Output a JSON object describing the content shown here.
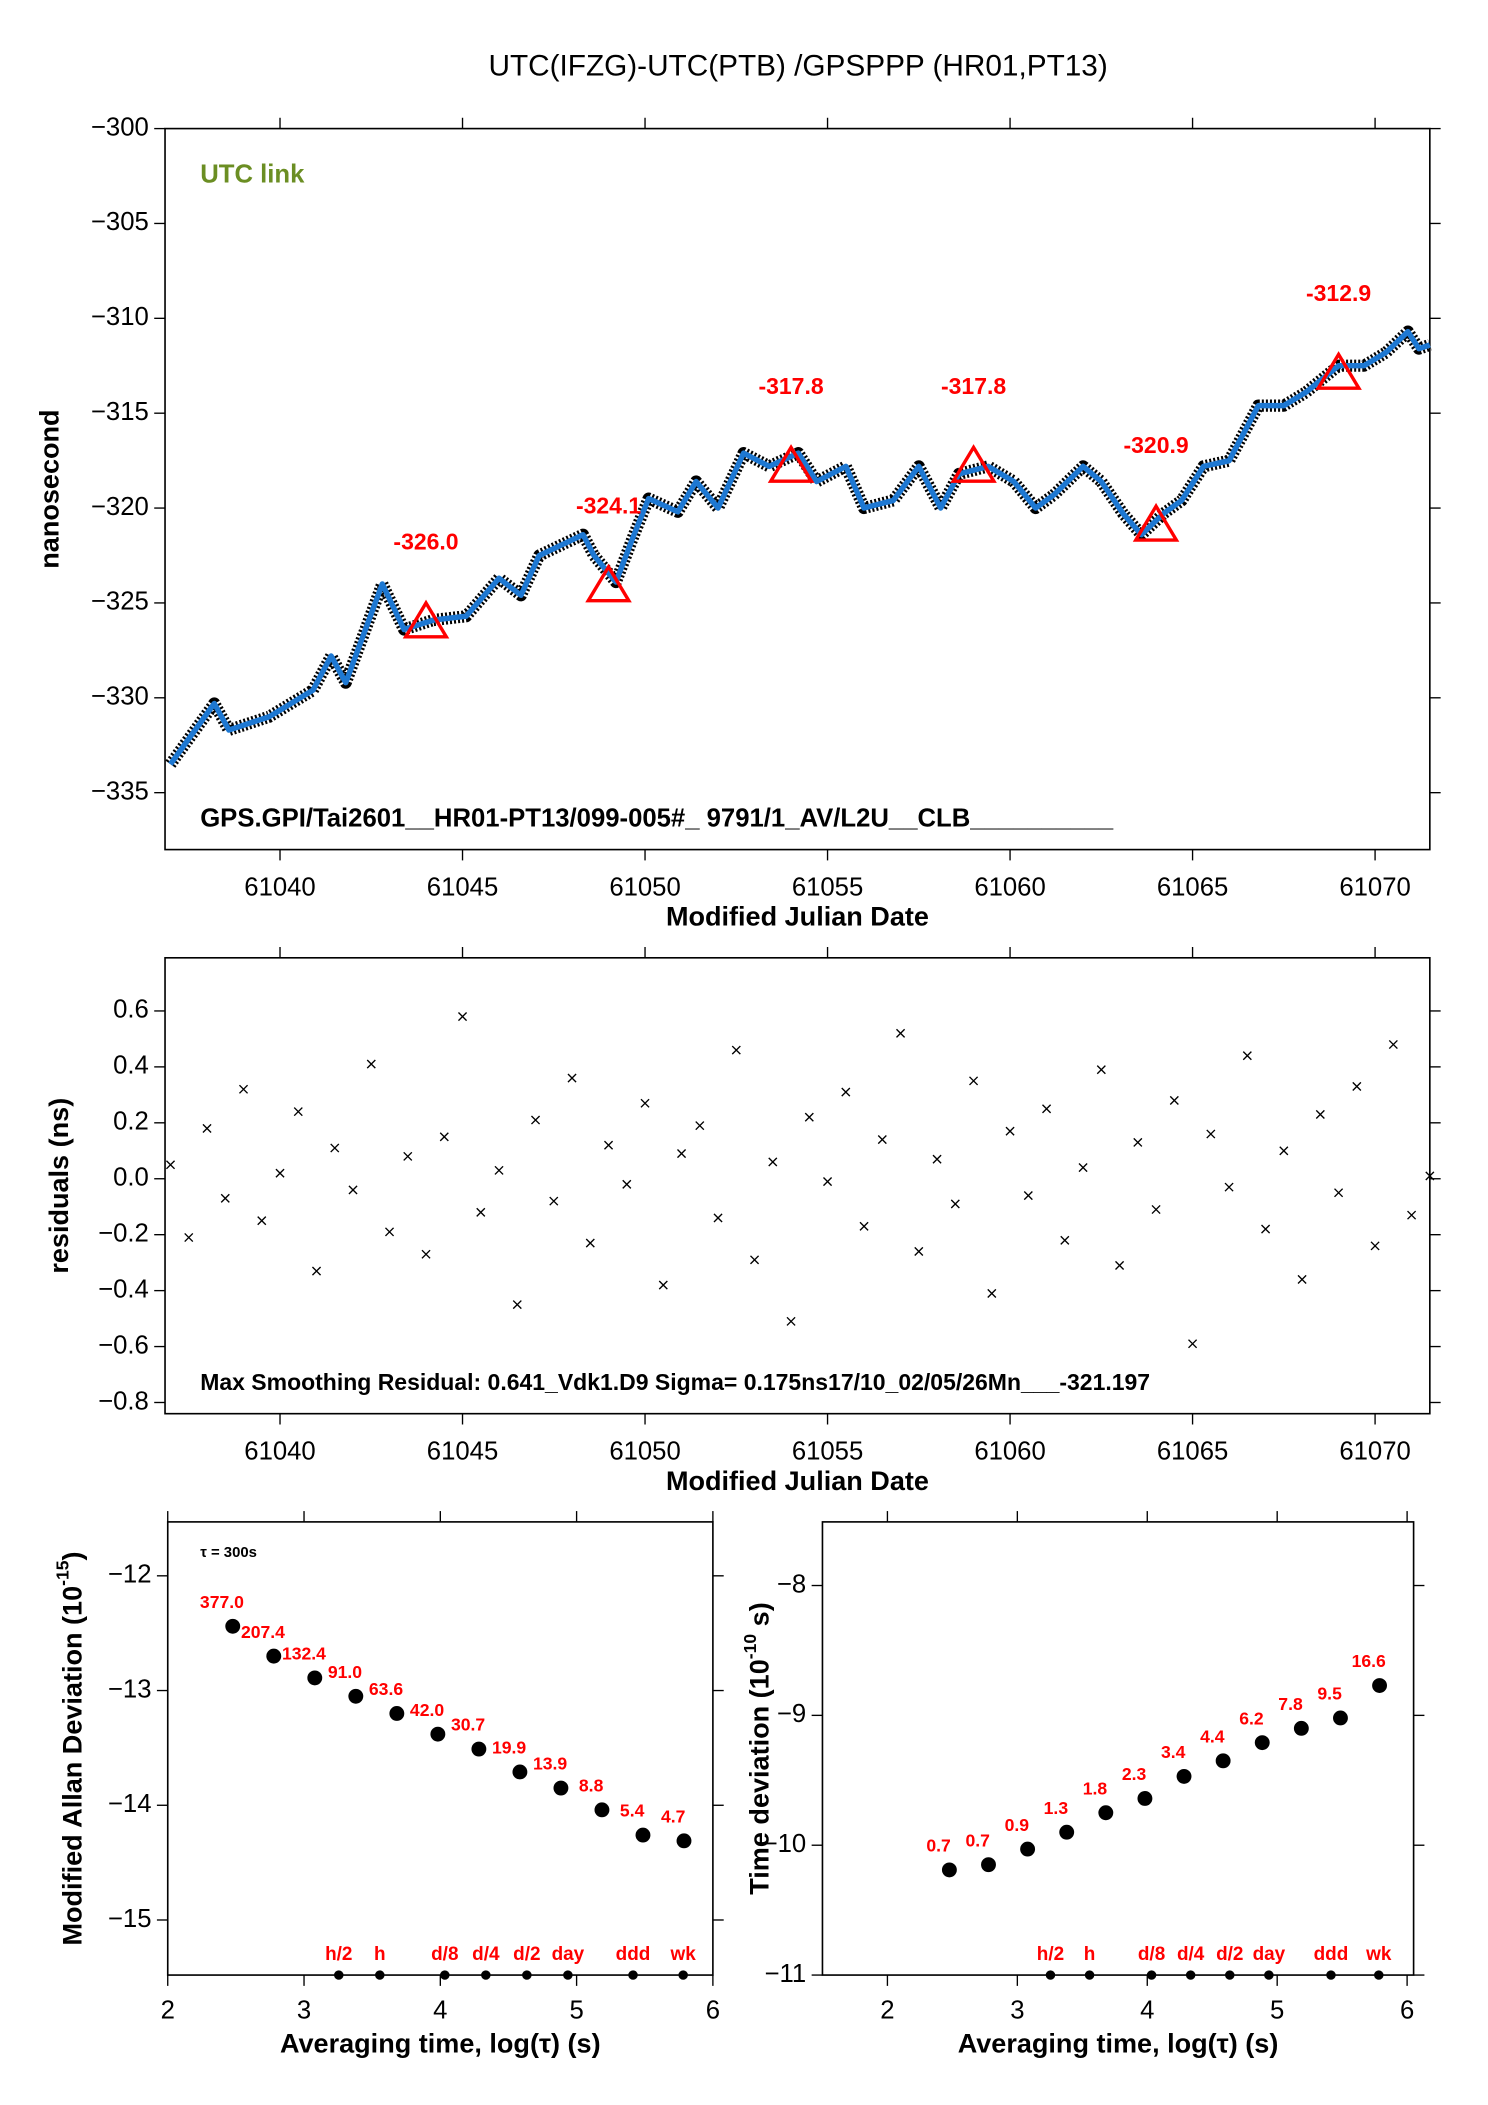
{
  "chart_data": [
    {
      "type": "line",
      "title": "UTC(IFZG)-UTC(PTB)  /GPSPPP  (HR01,PT13)",
      "annotation": "UTC link",
      "annotation_color": "#6b8e23",
      "footnote": "GPS.GPI/Tai2601__HR01-PT13/099-005#_  9791/1_AV/L2U__CLB__________",
      "x_label": "Modified Julian Date",
      "y_label": "nanosecond",
      "xlim": [
        61036.85,
        61071.5
      ],
      "ylim": [
        -338,
        -300
      ],
      "xticks": [
        61040,
        61045,
        61050,
        61055,
        61060,
        61065,
        61070
      ],
      "yticks": [
        {
          "value": -300,
          "label": "−300"
        },
        {
          "value": -305,
          "label": "−305"
        },
        {
          "value": -310,
          "label": "−310"
        },
        {
          "value": -315,
          "label": "−315"
        },
        {
          "value": -320,
          "label": "−320"
        },
        {
          "value": -325,
          "label": "−325"
        },
        {
          "value": -330,
          "label": "−330"
        },
        {
          "value": -335,
          "label": "−335"
        }
      ],
      "series": [
        {
          "color": "#1e78d2",
          "x": [
            61037.0,
            61038.2,
            61038.6,
            61039.7,
            61040.9,
            61041.4,
            61041.8,
            61042.8,
            61043.4,
            61044.2,
            61045.1,
            61046.0,
            61046.6,
            61047.1,
            61048.3,
            61048.6,
            61049.2,
            61049.7,
            61050.1,
            61050.9,
            61051.4,
            61052.0,
            61052.7,
            61053.4,
            61054.2,
            61054.7,
            61055.5,
            61056.0,
            61056.8,
            61057.5,
            61058.1,
            61058.6,
            61059.4,
            61060.1,
            61060.7,
            61061.2,
            61062.0,
            61062.5,
            61063.1,
            61063.6,
            61064.2,
            61064.7,
            61065.3,
            61066.0,
            61066.8,
            61067.5,
            61068.1,
            61069.0,
            61069.7,
            61070.3,
            61070.9,
            61071.2,
            61071.5
          ],
          "values": [
            -333.5,
            -330.3,
            -331.7,
            -331.0,
            -329.6,
            -327.8,
            -329.2,
            -324.0,
            -326.4,
            -325.9,
            -325.7,
            -323.7,
            -324.6,
            -322.5,
            -321.4,
            -322.5,
            -323.9,
            -321.4,
            -319.5,
            -320.2,
            -318.6,
            -320.0,
            -317.1,
            -317.8,
            -317.1,
            -318.6,
            -317.8,
            -320.0,
            -319.6,
            -317.8,
            -320.0,
            -318.2,
            -317.8,
            -318.6,
            -320.0,
            -319.3,
            -317.8,
            -318.6,
            -320.3,
            -321.4,
            -320.3,
            -319.6,
            -317.8,
            -317.5,
            -314.6,
            -314.6,
            -313.9,
            -312.5,
            -312.5,
            -311.8,
            -310.7,
            -311.6,
            -311.4
          ]
        }
      ],
      "markers": {
        "color": "#ff0000",
        "x": [
          61044,
          61049,
          61054,
          61059,
          61064,
          61069
        ],
        "values": [
          -326.0,
          -324.1,
          -317.8,
          -317.8,
          -320.9,
          -312.9
        ],
        "value_labels": [
          "-326.0",
          "-324.1",
          "-317.8",
          "-317.8",
          "-320.9",
          "-312.9"
        ]
      }
    },
    {
      "type": "scatter",
      "marker": "x",
      "footnote": "Max Smoothing Residual: 0.641_Vdk1.D9  Sigma= 0.175ns17/10_02/05/26Mn___-321.197",
      "x_label": "Modified Julian Date",
      "y_label": "residuals (ns)",
      "xlim": [
        61036.85,
        61071.5
      ],
      "ylim": [
        -0.84,
        0.79
      ],
      "xticks": [
        61040,
        61045,
        61050,
        61055,
        61060,
        61065,
        61070
      ],
      "yticks": [
        0.6,
        0.4,
        0.2,
        {
          "value": 0,
          "label": "0.0"
        },
        {
          "value": -0.2,
          "label": "−0.2"
        },
        {
          "value": -0.4,
          "label": "−0.4"
        },
        {
          "value": -0.6,
          "label": "−0.6"
        },
        {
          "value": -0.8,
          "label": "−0.8"
        }
      ],
      "series": [
        {
          "color": "#000000",
          "x": [
            61037.0,
            61037.5,
            61038.0,
            61038.5,
            61039.0,
            61039.5,
            61040.0,
            61040.5,
            61041.0,
            61041.5,
            61042.0,
            61042.5,
            61043.0,
            61043.5,
            61044.0,
            61044.5,
            61045.0,
            61045.5,
            61046.0,
            61046.5,
            61047.0,
            61047.5,
            61048.0,
            61048.5,
            61049.0,
            61049.5,
            61050.0,
            61050.5,
            61051.0,
            61051.5,
            61052.0,
            61052.5,
            61053.0,
            61053.5,
            61054.0,
            61054.5,
            61055.0,
            61055.5,
            61056.0,
            61056.5,
            61057.0,
            61057.5,
            61058.0,
            61058.5,
            61059.0,
            61059.5,
            61060.0,
            61060.5,
            61061.0,
            61061.5,
            61062.0,
            61062.5,
            61063.0,
            61063.5,
            61064.0,
            61064.5,
            61065.0,
            61065.5,
            61066.0,
            61066.5,
            61067.0,
            61067.5,
            61068.0,
            61068.5,
            61069.0,
            61069.5,
            61070.0,
            61070.5,
            61071.0,
            61071.5
          ],
          "values": [
            0.05,
            -0.21,
            0.18,
            -0.07,
            0.32,
            -0.15,
            0.02,
            0.24,
            -0.33,
            0.11,
            -0.04,
            0.41,
            -0.19,
            0.08,
            -0.27,
            0.15,
            0.58,
            -0.12,
            0.03,
            -0.45,
            0.21,
            -0.08,
            0.36,
            -0.23,
            0.12,
            -0.02,
            0.27,
            -0.38,
            0.09,
            0.19,
            -0.14,
            0.46,
            -0.29,
            0.06,
            -0.51,
            0.22,
            -0.01,
            0.31,
            -0.17,
            0.14,
            0.52,
            -0.26,
            0.07,
            -0.09,
            0.35,
            -0.41,
            0.17,
            -0.06,
            0.25,
            -0.22,
            0.04,
            0.39,
            -0.31,
            0.13,
            -0.11,
            0.28,
            -0.59,
            0.16,
            -0.03,
            0.44,
            -0.18,
            0.1,
            -0.36,
            0.23,
            -0.05,
            0.33,
            -0.24,
            0.48,
            -0.13,
            0.01
          ]
        }
      ]
    },
    {
      "type": "scatter",
      "marker": "dot",
      "annotation": "τ = 300s",
      "annotation_color": "#000000",
      "x_label": "Averaging time, log(τ) (s)",
      "y_label": "Modified Allan Deviation (10",
      "y_label_exponent": "-15",
      "y_label_end": ")",
      "xlim": [
        2,
        6
      ],
      "ylim": [
        -15.48,
        -11.53
      ],
      "xticks": [
        2,
        3,
        4,
        5,
        6
      ],
      "yticks": [
        {
          "value": -12,
          "label": "−12"
        },
        {
          "value": -13,
          "label": "−13"
        },
        {
          "value": -14,
          "label": "−14"
        },
        {
          "value": -15,
          "label": "−15"
        }
      ],
      "series": [
        {
          "color": "#000000",
          "label_color": "#ff0000",
          "x": [
            2.477,
            2.778,
            3.079,
            3.38,
            3.681,
            3.982,
            4.283,
            4.584,
            4.885,
            5.186,
            5.487,
            5.788
          ],
          "values": [
            -12.44,
            -12.7,
            -12.89,
            -13.05,
            -13.2,
            -13.38,
            -13.51,
            -13.71,
            -13.85,
            -14.04,
            -14.26,
            -14.31
          ],
          "point_labels": [
            "377.0",
            "207.4",
            "132.4",
            "91.0",
            "63.6",
            "42.0",
            "30.7",
            "19.9",
            "13.9",
            "8.8",
            "5.4",
            "4.7"
          ]
        }
      ],
      "reference_marks": {
        "color": "#ff0000",
        "labels": [
          "h/2",
          "h",
          "d/8",
          "d/4",
          "d/2",
          "day",
          "ddd",
          "wk"
        ],
        "x": [
          3.255,
          3.556,
          4.033,
          4.334,
          4.635,
          4.936,
          5.414,
          5.782
        ]
      }
    },
    {
      "type": "scatter",
      "marker": "dot",
      "x_label": "Averaging time, log(τ) (s)",
      "y_label": "Time deviation (10",
      "y_label_exponent": "-10",
      "y_label_end": " s)",
      "xlim": [
        1.5,
        6.05
      ],
      "ylim": [
        -11,
        -7.51
      ],
      "xticks": [
        2,
        3,
        4,
        5,
        6
      ],
      "yticks": [
        {
          "value": -8,
          "label": "−8"
        },
        {
          "value": -9,
          "label": "−9"
        },
        {
          "value": -10,
          "label": "−10"
        },
        {
          "value": -11,
          "label": "−11"
        }
      ],
      "series": [
        {
          "color": "#000000",
          "label_color": "#ff0000",
          "x": [
            2.477,
            2.778,
            3.079,
            3.38,
            3.681,
            3.982,
            4.283,
            4.584,
            4.885,
            5.186,
            5.487,
            5.788
          ],
          "values": [
            -10.19,
            -10.15,
            -10.03,
            -9.9,
            -9.75,
            -9.64,
            -9.47,
            -9.35,
            -9.21,
            -9.1,
            -9.02,
            -8.77
          ],
          "point_labels": [
            "0.7",
            "0.7",
            "0.9",
            "1.3",
            "1.8",
            "2.3",
            "3.4",
            "4.4",
            "6.2",
            "7.8",
            "9.5",
            "16.6"
          ]
        }
      ],
      "reference_marks": {
        "color": "#ff0000",
        "labels": [
          "h/2",
          "h",
          "d/8",
          "d/4",
          "d/2",
          "day",
          "ddd",
          "wk"
        ],
        "x": [
          3.255,
          3.556,
          4.033,
          4.334,
          4.635,
          4.936,
          5.414,
          5.782
        ]
      }
    }
  ]
}
